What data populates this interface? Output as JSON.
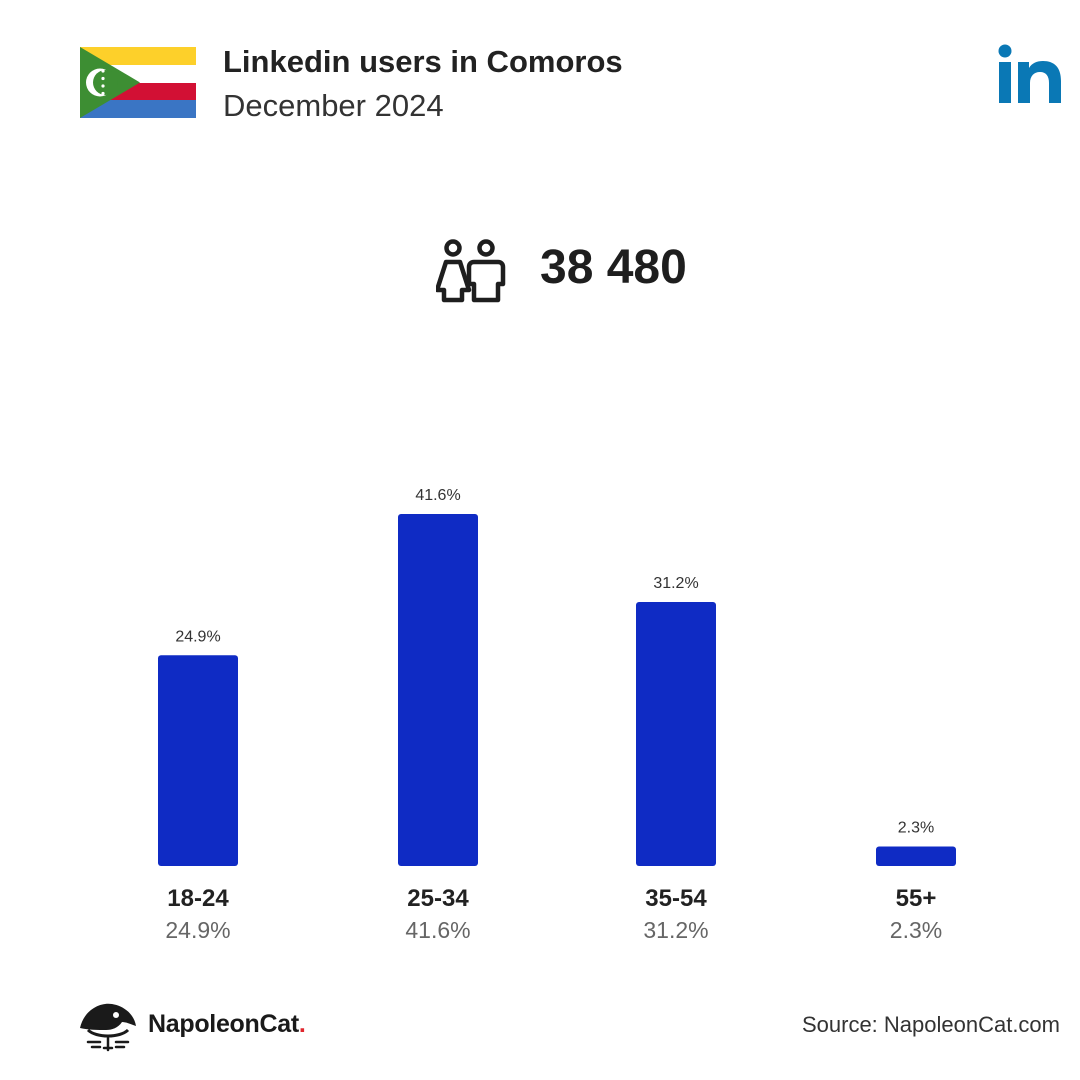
{
  "header": {
    "title": "Linkedin users in Comoros",
    "subtitle": "December 2024"
  },
  "flag_icon": "comoros-flag",
  "logo_icon": "linkedin-logo",
  "total": {
    "icon": "users-icon",
    "value": "38 480"
  },
  "colors": {
    "bar": "#0f2bc4",
    "linkedin": "#0a78b5",
    "accent_dot": "#e0262d"
  },
  "chart_data": {
    "type": "bar",
    "categories": [
      "18-24",
      "25-34",
      "35-54",
      "55+"
    ],
    "values": [
      24.9,
      41.6,
      31.2,
      2.3
    ],
    "value_labels": [
      "24.9%",
      "41.6%",
      "31.2%",
      "2.3%"
    ],
    "ylim": [
      0,
      41.6
    ],
    "grid": false,
    "legend": "none"
  },
  "footer": {
    "brand": "NapoleonCat",
    "brand_dot": ".",
    "source": "Source: NapoleonCat.com"
  }
}
